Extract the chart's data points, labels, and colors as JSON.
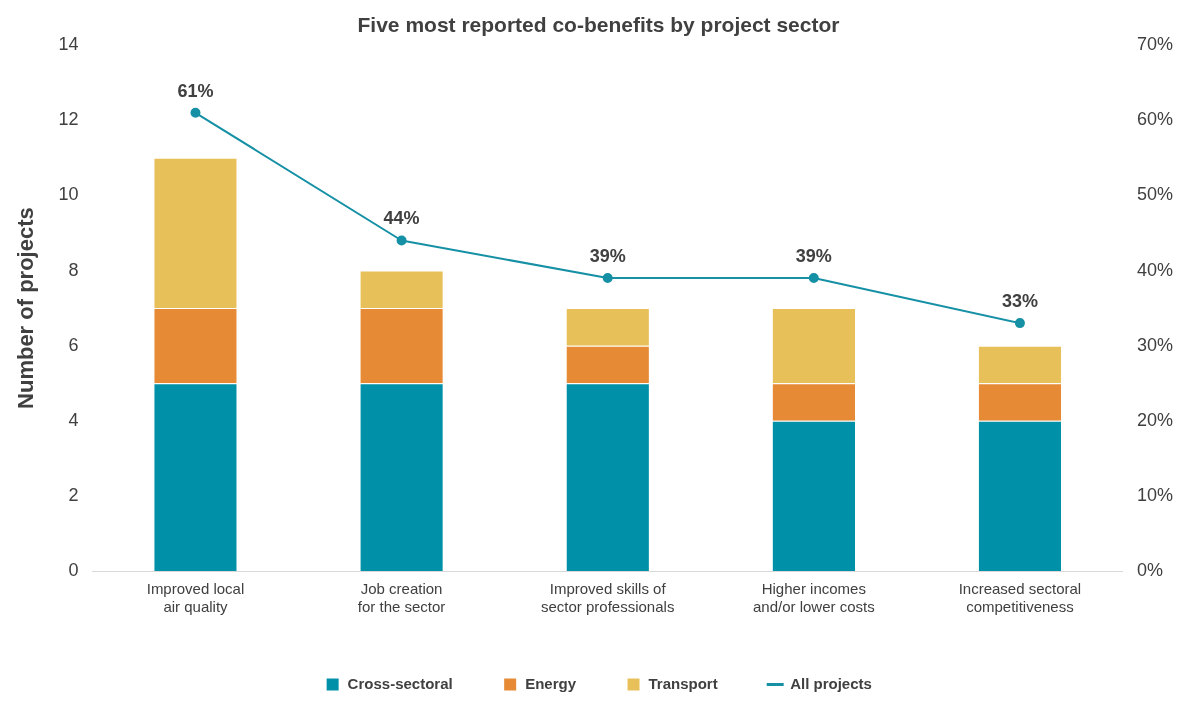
{
  "chart_data": {
    "type": "bar",
    "title": "Five most reported co-benefits by project sector",
    "ylabel": "Number of projects",
    "categories": [
      "Improved local air quality",
      "Job creation for the sector",
      "Improved skills of sector professionals",
      "Higher incomes and/or lower costs",
      "Increased sectoral competitiveness"
    ],
    "stacked": true,
    "series": [
      {
        "name": "Cross-sectoral",
        "color": "#0090a8",
        "values": [
          5,
          5,
          5,
          4,
          4
        ]
      },
      {
        "name": "Energy",
        "color": "#e68a35",
        "values": [
          2,
          2,
          1,
          1,
          1
        ]
      },
      {
        "name": "Transport",
        "color": "#e8c05a",
        "values": [
          4,
          1,
          1,
          2,
          1
        ]
      },
      {
        "name": "All projects",
        "type": "line",
        "axis": "y2",
        "color": "#1590a5",
        "values": [
          61,
          44,
          39,
          39,
          33
        ],
        "value_labels": [
          "61%",
          "44%",
          "39%",
          "39%",
          "33%"
        ]
      }
    ],
    "ylim": [
      0,
      14
    ],
    "yticks": [
      0,
      2,
      4,
      6,
      8,
      10,
      12,
      14
    ],
    "y2lim": [
      0,
      70
    ],
    "y2ticks": [
      {
        "value": 0,
        "label": "0%"
      },
      {
        "value": 10,
        "label": "10%"
      },
      {
        "value": 20,
        "label": "20%"
      },
      {
        "value": 30,
        "label": "30%"
      },
      {
        "value": 40,
        "label": "40%"
      },
      {
        "value": 50,
        "label": "50%"
      },
      {
        "value": 60,
        "label": "60%"
      },
      {
        "value": 70,
        "label": "70%"
      }
    ],
    "grid": false,
    "legend": "bottom",
    "marker": "circle"
  }
}
